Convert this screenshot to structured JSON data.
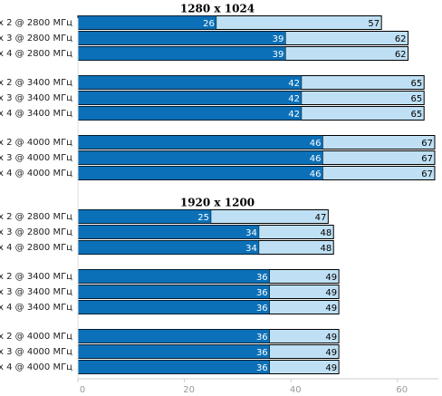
{
  "chart_data": [
    {
      "type": "overlap-bar",
      "title": "1280 x 1024",
      "categories": [
        "x 2 @ 2800 МГц",
        "x 3 @ 2800 МГц",
        "x 4 @ 2800 МГц",
        "x 2 @ 3400 МГц",
        "x 3 @ 3400 МГц",
        "x 4 @ 3400 МГц",
        "x 2 @ 4000 МГц",
        "x 3 @ 4000 МГц",
        "x 4 @ 4000 МГц"
      ],
      "series": [
        {
          "color": "#bfe0f4",
          "values": [
            57,
            62,
            62,
            65,
            65,
            65,
            67,
            67,
            67
          ]
        },
        {
          "color": "#0b70b8",
          "values": [
            26,
            39,
            39,
            42,
            42,
            42,
            46,
            46,
            46
          ]
        }
      ],
      "xlim": [
        0,
        68
      ]
    },
    {
      "type": "overlap-bar",
      "title": "1920 x 1200",
      "categories": [
        "x 2 @ 2800 МГц",
        "x 3 @ 2800 МГц",
        "x 4 @ 2800 МГц",
        "x 2 @ 3400 МГц",
        "x 3 @ 3400 МГц",
        "x 4 @ 3400 МГц",
        "x 2 @ 4000 МГц",
        "x 3 @ 4000 МГц",
        "x 4 @ 4000 МГц"
      ],
      "series": [
        {
          "color": "#bfe0f4",
          "values": [
            47,
            48,
            48,
            49,
            49,
            49,
            49,
            49,
            49
          ]
        },
        {
          "color": "#0b70b8",
          "values": [
            25,
            34,
            34,
            36,
            36,
            36,
            36,
            36,
            36
          ]
        }
      ],
      "xlim": [
        0,
        68
      ],
      "xticks": [
        0,
        20,
        40,
        60
      ]
    }
  ]
}
